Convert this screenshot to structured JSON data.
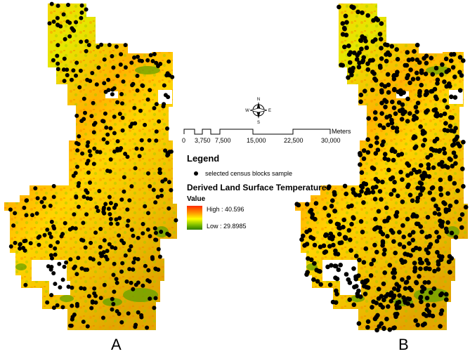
{
  "panels": [
    {
      "label": "A",
      "sample_style": "sparse"
    },
    {
      "label": "B",
      "sample_style": "dense"
    }
  ],
  "north_arrow": {
    "n": "N",
    "s": "S",
    "e": "E",
    "w": "W"
  },
  "scale": {
    "unit": "Meters",
    "ticks": [
      "0",
      "3,750",
      "7,500",
      "15,000",
      "22,500",
      "30,000"
    ]
  },
  "legend": {
    "title": "Legend",
    "sample_label": "selected census blocks sample",
    "layer_title": "Derived Land Surface Temperature",
    "value_label": "Value",
    "high_label": "High : 40.596",
    "low_label": "Low : 29.8985"
  },
  "colors": {
    "hot": "#ff2a00",
    "warm": "#ffaa00",
    "mid": "#ffff00",
    "cool": "#7fbf00",
    "cold": "#2e7d00",
    "sample": "#000000"
  }
}
